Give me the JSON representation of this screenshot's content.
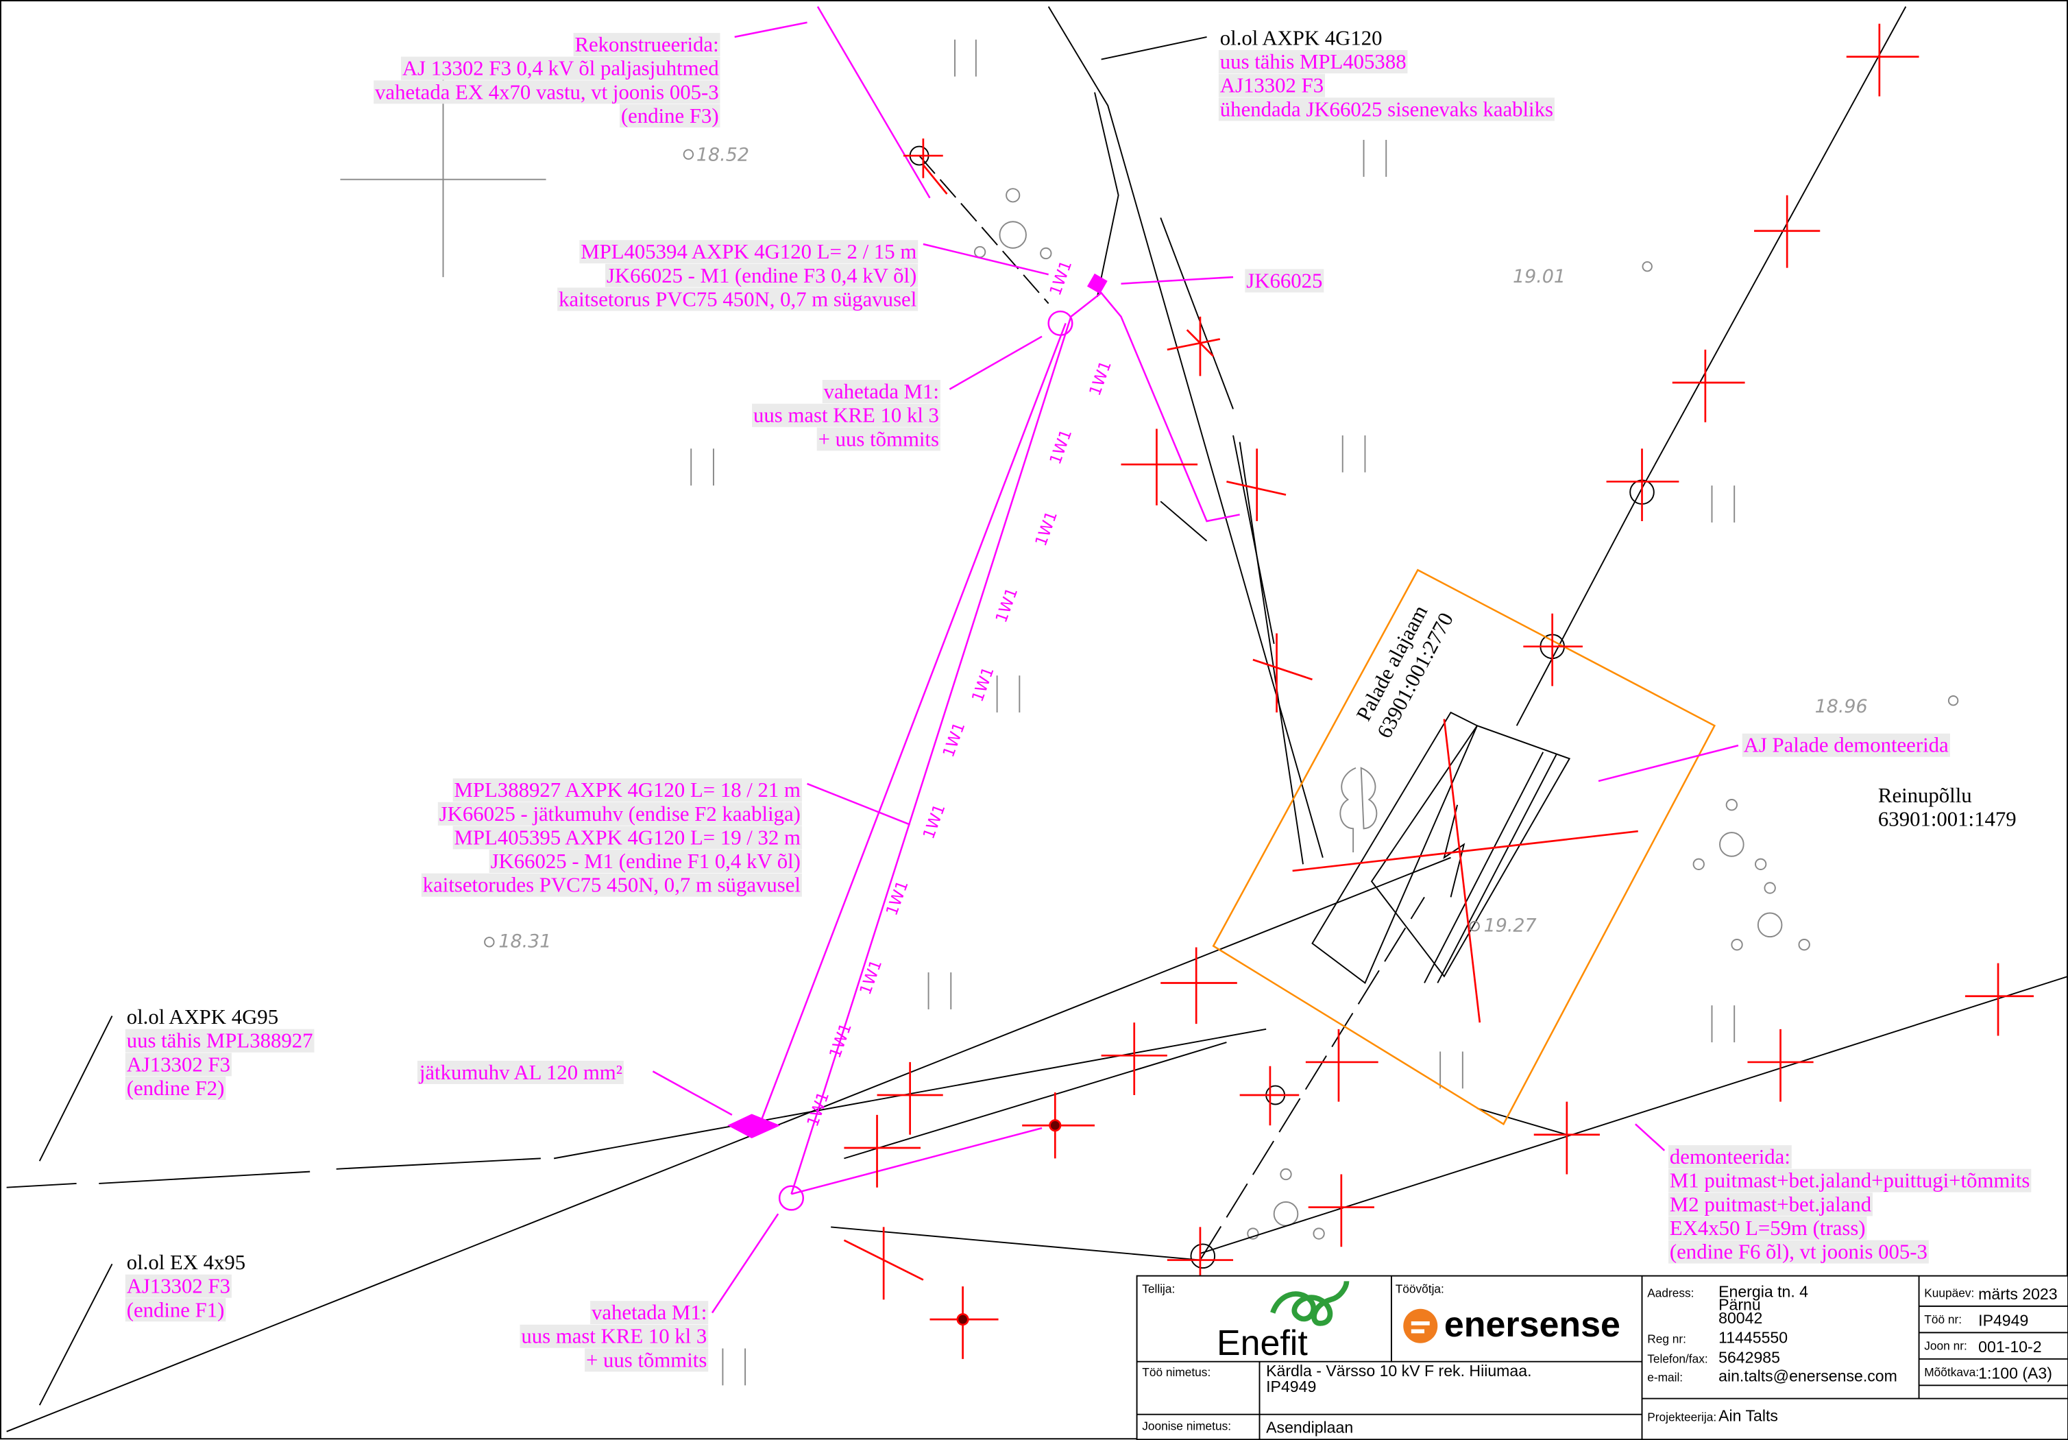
{
  "annotations": [
    {
      "lines": [
        "Rekonstrueerida:",
        "AJ 13302 F3 0,4 kV õl paljasjuhtmed",
        "vahetada EX 4x70 vastu, vt joonis 005-3",
        "(endine F3)"
      ]
    },
    {
      "title": "ol.ol AXPK 4G120",
      "lines": [
        "uus tähis MPL405388",
        "AJ13302 F3",
        "ühendada JK66025 sisenevaks kaabliks"
      ]
    },
    {
      "lines": [
        "MPL405394 AXPK 4G120 L= 2 / 15 m",
        "JK66025 - M1 (endine F3 0,4 kV õl)",
        "kaitsetorus PVC75 450N, 0,7 m sügavusel"
      ]
    },
    {
      "lines": [
        "JK66025"
      ]
    },
    {
      "lines": [
        "vahetada M1:",
        "uus mast KRE 10 kl 3",
        "+ uus tõmmits"
      ]
    },
    {
      "lines": [
        "MPL388927 AXPK 4G120 L= 18 / 21 m",
        "JK66025 - jätkumuhv (endise F2 kaabliga)",
        "MPL405395 AXPK 4G120 L= 19 / 32 m",
        "JK66025 - M1 (endine F1 0,4 kV õl)",
        "kaitsetorudes PVC75 450N, 0,7 m sügavusel"
      ]
    },
    {
      "lines": [
        "AJ Palade demonteerida"
      ]
    },
    {
      "title": "ol.ol AXPK 4G95",
      "lines": [
        "uus tähis MPL388927",
        "AJ13302 F3",
        "(endine F2)"
      ]
    },
    {
      "lines": [
        "jätkumuhv AL 120 mm²"
      ]
    },
    {
      "title": "ol.ol EX 4x95",
      "lines": [
        "AJ13302 F3",
        "(endine F1)"
      ]
    },
    {
      "lines": [
        "vahetada M1:",
        "uus mast KRE 10 kl 3",
        "+ uus tõmmits"
      ]
    },
    {
      "lines": [
        "demonteerida:",
        "M1 puitmast+bet.jaland+puittugi+tõmmits",
        "M2 puitmast+bet.jaland",
        "EX4x50 L=59m (trass)",
        "(endine F6 õl), vt joonis 005-3"
      ]
    }
  ],
  "parcels": [
    {
      "lines": [
        "Reinupõllu",
        "63901:001:1479"
      ]
    },
    {
      "lines": [
        "Palade alajaam",
        "63901:001:2770"
      ]
    }
  ],
  "elevations": [
    "18.52",
    "19.01",
    "18.96",
    "18.31",
    "19.27"
  ],
  "cable_label": "1W1",
  "title_block": {
    "client_label": "Tellija:",
    "client_logo": "Enefit",
    "contractor_label": "Töövõtja:",
    "contractor_logo": "enersense",
    "address_label": "Aadress:",
    "address": [
      "Energia tn. 4",
      "Pärnu",
      "80042"
    ],
    "reg_label": "Reg nr:",
    "reg": "11445550",
    "phone_label": "Telefon/fax:",
    "phone": "5642985",
    "email_label": "e-mail:",
    "email": "ain.talts@enersense.com",
    "designer_label": "Projekteerija:",
    "designer": "Ain Talts",
    "date_label": "Kuupäev:",
    "date": "märts 2023",
    "work_no_label": "Töö nr:",
    "work_no": "IP4949",
    "drawing_no_label": "Joon nr:",
    "drawing_no": "001-10-2",
    "scale_label": "Mõõtkava:",
    "scale": "1:100 (A3)",
    "work_name_label": "Töö nimetus:",
    "work_name": [
      "Kärdla - Värsso 10 kV F rek. Hiiumaa.",
      "IP4949"
    ],
    "drawing_name_label": "Joonise nimetus:",
    "drawing_name": "Asendiplaan"
  }
}
